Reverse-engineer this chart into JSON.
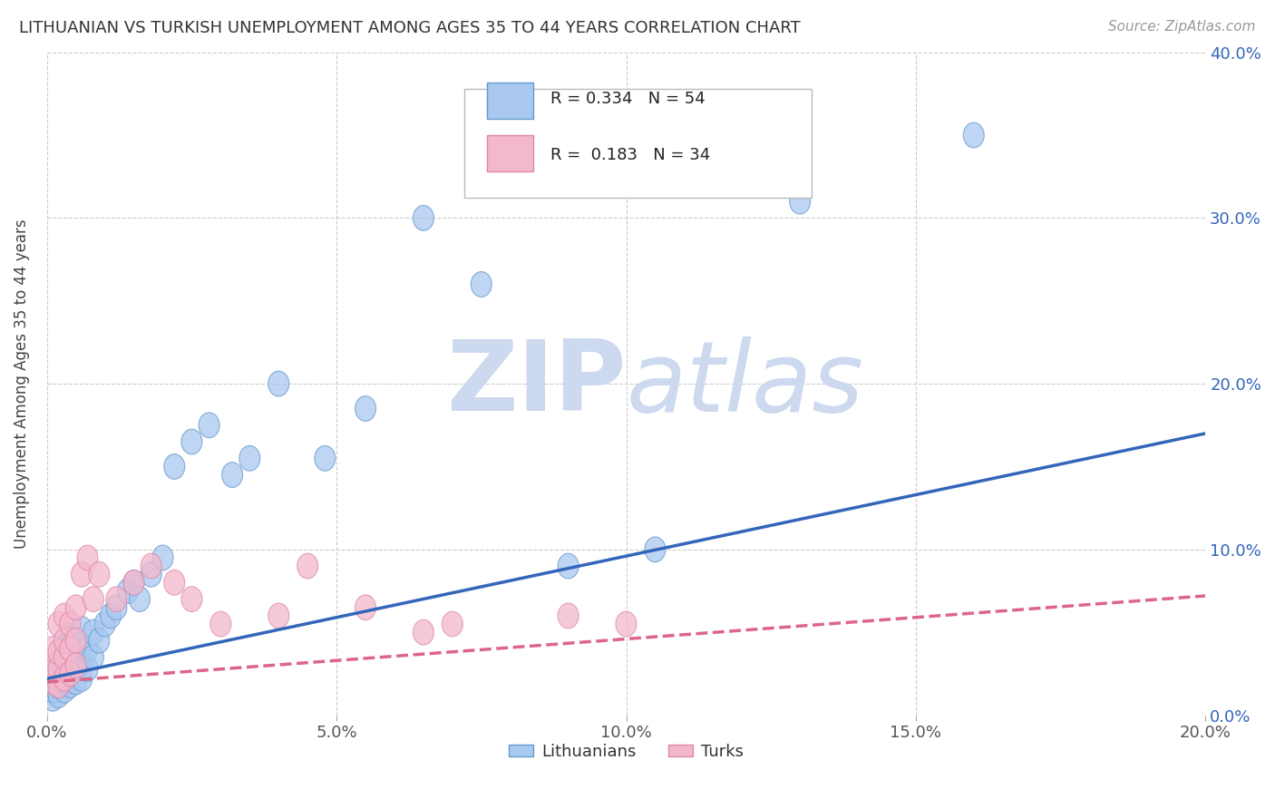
{
  "title": "LITHUANIAN VS TURKISH UNEMPLOYMENT AMONG AGES 35 TO 44 YEARS CORRELATION CHART",
  "source": "Source: ZipAtlas.com",
  "ylabel": "Unemployment Among Ages 35 to 44 years",
  "xlim": [
    0.0,
    0.2
  ],
  "ylim": [
    0.0,
    0.4
  ],
  "xticks": [
    0.0,
    0.05,
    0.1,
    0.15,
    0.2
  ],
  "yticks": [
    0.0,
    0.1,
    0.2,
    0.3,
    0.4
  ],
  "blue_R": "0.334",
  "blue_N": "54",
  "pink_R": "0.183",
  "pink_N": "34",
  "blue_color": "#a8c8f0",
  "pink_color": "#f4b8cc",
  "blue_edge_color": "#6699cc",
  "pink_edge_color": "#dd88aa",
  "blue_line_color": "#3366bb",
  "pink_line_color": "#dd6688",
  "watermark_color": "#ccd9ee",
  "background_color": "#ffffff",
  "grid_color": "#cccccc",
  "blue_x": [
    0.001,
    0.001,
    0.001,
    0.001,
    0.002,
    0.002,
    0.002,
    0.002,
    0.002,
    0.003,
    0.003,
    0.003,
    0.003,
    0.003,
    0.003,
    0.004,
    0.004,
    0.004,
    0.004,
    0.004,
    0.005,
    0.005,
    0.005,
    0.006,
    0.006,
    0.006,
    0.006,
    0.007,
    0.007,
    0.008,
    0.008,
    0.009,
    0.01,
    0.011,
    0.012,
    0.014,
    0.015,
    0.016,
    0.018,
    0.02,
    0.022,
    0.025,
    0.028,
    0.032,
    0.035,
    0.04,
    0.048,
    0.055,
    0.065,
    0.075,
    0.09,
    0.105,
    0.13,
    0.16
  ],
  "blue_y": [
    0.01,
    0.015,
    0.018,
    0.022,
    0.012,
    0.018,
    0.022,
    0.028,
    0.032,
    0.015,
    0.02,
    0.025,
    0.03,
    0.035,
    0.04,
    0.018,
    0.025,
    0.032,
    0.04,
    0.048,
    0.02,
    0.03,
    0.038,
    0.022,
    0.032,
    0.042,
    0.052,
    0.028,
    0.04,
    0.035,
    0.05,
    0.045,
    0.055,
    0.06,
    0.065,
    0.075,
    0.08,
    0.07,
    0.085,
    0.095,
    0.15,
    0.165,
    0.175,
    0.145,
    0.155,
    0.2,
    0.155,
    0.185,
    0.3,
    0.26,
    0.09,
    0.1,
    0.31,
    0.35
  ],
  "pink_x": [
    0.001,
    0.001,
    0.001,
    0.002,
    0.002,
    0.002,
    0.002,
    0.003,
    0.003,
    0.003,
    0.003,
    0.004,
    0.004,
    0.004,
    0.005,
    0.005,
    0.005,
    0.006,
    0.007,
    0.008,
    0.009,
    0.012,
    0.015,
    0.018,
    0.022,
    0.025,
    0.03,
    0.04,
    0.045,
    0.055,
    0.065,
    0.07,
    0.09,
    0.1
  ],
  "pink_y": [
    0.02,
    0.03,
    0.04,
    0.018,
    0.028,
    0.038,
    0.055,
    0.022,
    0.035,
    0.045,
    0.06,
    0.025,
    0.04,
    0.055,
    0.03,
    0.045,
    0.065,
    0.085,
    0.095,
    0.07,
    0.085,
    0.07,
    0.08,
    0.09,
    0.08,
    0.07,
    0.055,
    0.06,
    0.09,
    0.065,
    0.05,
    0.055,
    0.06,
    0.055
  ],
  "figsize": [
    14.06,
    8.92
  ],
  "dpi": 100
}
